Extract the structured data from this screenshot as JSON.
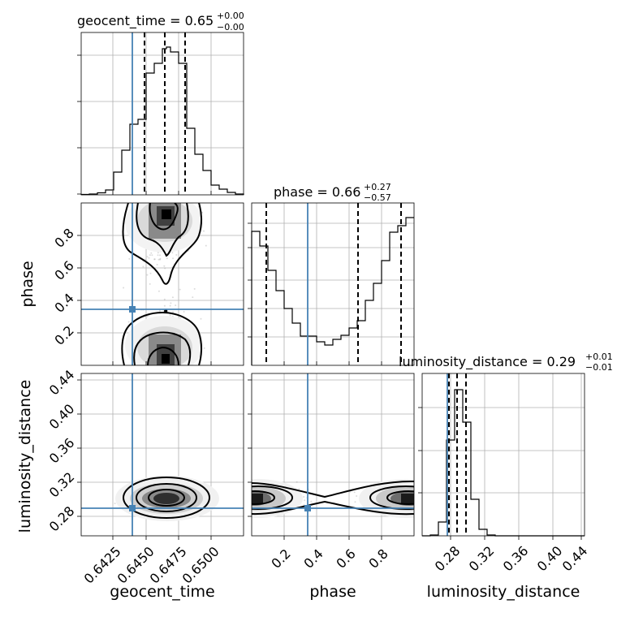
{
  "chart_data": {
    "type": "corner",
    "parameters": [
      {
        "name": "geocent_time",
        "axis_label": "geocent_time",
        "title_main": "geocent_time = 0.65",
        "title_plus": "+0.00",
        "title_minus": "−0.00",
        "range": [
          0.6403,
          0.6518
        ],
        "ticks": [
          0.6425,
          0.645,
          0.6475,
          0.65
        ],
        "tick_labels": [
          "0.6425",
          "0.6450",
          "0.6475",
          "0.6500"
        ],
        "truth": 0.644,
        "quantiles": [
          0.6448,
          0.6462,
          0.6476
        ],
        "hist_edges": [
          0.6403,
          0.6518
        ],
        "hist_counts": [
          1,
          1,
          2,
          4,
          12,
          25,
          55,
          90,
          97,
          100,
          94,
          71,
          45,
          26,
          12,
          5,
          3,
          1,
          1,
          0
        ]
      },
      {
        "name": "phase",
        "axis_label": "phase",
        "title_main": "phase = 0.66",
        "title_plus": "+0.27",
        "title_minus": "−0.57",
        "range": [
          0.0,
          1.0
        ],
        "ticks": [
          0.2,
          0.4,
          0.6,
          0.8
        ],
        "tick_labels": [
          "0.2",
          "0.4",
          "0.6",
          "0.8"
        ],
        "truth": 0.34,
        "quantiles": [
          0.09,
          0.66,
          0.93
        ],
        "hist_edges": [
          0.0,
          1.0
        ],
        "hist_counts": [
          97,
          88,
          72,
          52,
          42,
          33,
          27,
          27,
          25,
          23,
          25,
          29,
          33,
          42,
          58,
          75,
          90,
          99,
          102,
          100
        ]
      },
      {
        "name": "luminosity_distance",
        "axis_label": "luminosity_distance",
        "title_main": "luminosity_distance = 0.29",
        "title_plus": "+0.01",
        "title_minus": "−0.01",
        "range": [
          0.257,
          0.447
        ],
        "ticks": [
          0.28,
          0.32,
          0.36,
          0.4,
          0.44
        ],
        "tick_labels": [
          "0.28",
          "0.32",
          "0.36",
          "0.40",
          "0.44"
        ],
        "truth": 0.2803,
        "quantiles": [
          0.2805,
          0.2895,
          0.2995
        ],
        "hist_edges": [
          0.257,
          0.447
        ],
        "hist_counts": [
          0,
          1,
          12,
          63,
          100,
          76,
          23,
          4,
          1,
          0,
          0,
          0,
          0,
          0,
          0,
          0,
          0,
          0,
          0,
          0
        ]
      }
    ],
    "scatter_pairs": [
      {
        "x": "geocent_time",
        "y": "phase"
      },
      {
        "x": "geocent_time",
        "y": "luminosity_distance"
      },
      {
        "x": "phase",
        "y": "luminosity_distance"
      }
    ],
    "grid": true,
    "truth_color": "#4682b4",
    "hist_color": "#000000",
    "density_color": "#000000"
  }
}
